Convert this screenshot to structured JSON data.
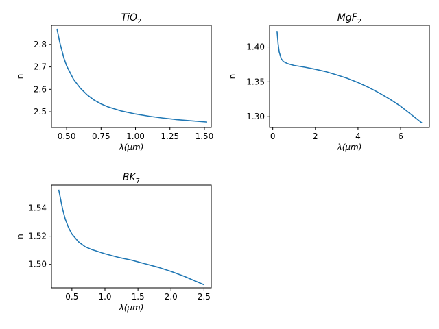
{
  "chart_data": [
    {
      "type": "line",
      "title_main": "TiO",
      "title_sub": "2",
      "xlabel_sym": "λ",
      "xlabel_unit": "(μm)",
      "ylabel": "n",
      "xlim": [
        0.39,
        1.55
      ],
      "ylim": [
        2.43,
        2.885
      ],
      "xticks": [
        0.5,
        0.75,
        1.0,
        1.25,
        1.5
      ],
      "xtick_labels": [
        "0.50",
        "0.75",
        "1.00",
        "1.25",
        "1.50"
      ],
      "yticks": [
        2.5,
        2.6,
        2.7,
        2.8
      ],
      "ytick_labels": [
        "2.5",
        "2.6",
        "2.7",
        "2.8"
      ],
      "color": "#1f77b4",
      "series": [
        {
          "x": [
            0.43,
            0.45,
            0.48,
            0.5,
            0.55,
            0.6,
            0.65,
            0.7,
            0.75,
            0.8,
            0.9,
            1.0,
            1.1,
            1.2,
            1.3,
            1.4,
            1.52
          ],
          "y": [
            2.87,
            2.81,
            2.74,
            2.705,
            2.645,
            2.605,
            2.575,
            2.552,
            2.535,
            2.522,
            2.503,
            2.49,
            2.48,
            2.472,
            2.465,
            2.46,
            2.454
          ]
        }
      ]
    },
    {
      "type": "line",
      "title_main": "MgF",
      "title_sub": "2",
      "xlabel_sym": "λ",
      "xlabel_unit": "(μm)",
      "ylabel": "n",
      "xlim": [
        -0.15,
        7.35
      ],
      "ylim": [
        1.2845,
        1.431
      ],
      "xticks": [
        0,
        2,
        4,
        6
      ],
      "xtick_labels": [
        "0",
        "2",
        "4",
        "6"
      ],
      "yticks": [
        1.3,
        1.35,
        1.4
      ],
      "ytick_labels": [
        "1.30",
        "1.35",
        "1.40"
      ],
      "color": "#1f77b4",
      "series": [
        {
          "x": [
            0.2,
            0.25,
            0.3,
            0.4,
            0.5,
            0.7,
            1.0,
            1.5,
            2.0,
            2.5,
            3.0,
            3.5,
            4.0,
            4.5,
            5.0,
            5.5,
            6.0,
            6.5,
            7.0
          ],
          "y": [
            1.423,
            1.405,
            1.393,
            1.383,
            1.379,
            1.376,
            1.3735,
            1.371,
            1.368,
            1.3645,
            1.36,
            1.355,
            1.349,
            1.342,
            1.334,
            1.325,
            1.315,
            1.303,
            1.291
          ]
        }
      ]
    },
    {
      "type": "line",
      "title_main": "BK",
      "title_sub": "7",
      "xlabel_sym": "λ",
      "xlabel_unit": "(μm)",
      "ylabel": "n",
      "xlim": [
        0.19,
        2.61
      ],
      "ylim": [
        1.4833,
        1.5563
      ],
      "xticks": [
        0.5,
        1.0,
        1.5,
        2.0,
        2.5
      ],
      "xtick_labels": [
        "0.5",
        "1.0",
        "1.5",
        "2.0",
        "2.5"
      ],
      "yticks": [
        1.5,
        1.52,
        1.54
      ],
      "ytick_labels": [
        "1.50",
        "1.52",
        "1.54"
      ],
      "color": "#1f77b4",
      "series": [
        {
          "x": [
            0.3,
            0.33,
            0.36,
            0.4,
            0.45,
            0.5,
            0.6,
            0.7,
            0.8,
            1.0,
            1.2,
            1.4,
            1.6,
            1.8,
            2.0,
            2.2,
            2.4,
            2.5
          ],
          "y": [
            1.553,
            1.546,
            1.539,
            1.532,
            1.526,
            1.5215,
            1.516,
            1.5125,
            1.5105,
            1.5075,
            1.505,
            1.503,
            1.5005,
            1.498,
            1.495,
            1.4915,
            1.4875,
            1.4855
          ]
        }
      ]
    }
  ]
}
